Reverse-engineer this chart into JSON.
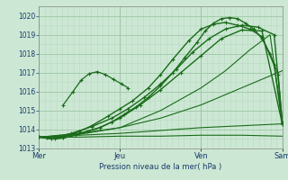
{
  "xlabel": "Pression niveau de la mer( hPa )",
  "ylim": [
    1013.0,
    1020.5
  ],
  "yticks": [
    1013,
    1014,
    1015,
    1016,
    1017,
    1018,
    1019,
    1020
  ],
  "xlim": [
    0.0,
    3.0
  ],
  "background_color": "#cce8d4",
  "grid_color_minor": "#b8d8c0",
  "grid_color_major": "#a0c8a8",
  "line_color": "#1a6b1a",
  "xtick_labels": [
    "Mer",
    "Jeu",
    "Ven",
    "Sam"
  ],
  "xtick_positions": [
    0,
    1,
    2,
    3
  ],
  "lines": [
    {
      "x": [
        0.0,
        0.1,
        0.2,
        0.3,
        0.45,
        0.6,
        0.75,
        0.9,
        1.05,
        1.2,
        1.35,
        1.5,
        1.65,
        1.8,
        1.95,
        2.05,
        2.15,
        2.25,
        2.35,
        2.45,
        2.55,
        2.65,
        2.75,
        2.85,
        2.95,
        3.0
      ],
      "y": [
        1013.6,
        1013.55,
        1013.5,
        1013.55,
        1013.7,
        1013.9,
        1014.1,
        1014.4,
        1014.8,
        1015.2,
        1015.7,
        1016.3,
        1017.0,
        1017.8,
        1018.6,
        1019.2,
        1019.6,
        1019.85,
        1019.9,
        1019.85,
        1019.6,
        1019.3,
        1018.8,
        1018.0,
        1016.9,
        1014.35
      ],
      "marker": true,
      "lw": 1.0
    },
    {
      "x": [
        0.0,
        0.15,
        0.3,
        0.5,
        0.65,
        0.85,
        1.0,
        1.15,
        1.35,
        1.5,
        1.65,
        1.85,
        2.0,
        2.15,
        2.3,
        2.45,
        2.6,
        2.75,
        2.9,
        3.0
      ],
      "y": [
        1013.6,
        1013.5,
        1013.6,
        1013.9,
        1014.2,
        1014.7,
        1015.1,
        1015.5,
        1016.2,
        1016.9,
        1017.7,
        1018.7,
        1019.3,
        1019.55,
        1019.65,
        1019.5,
        1019.3,
        1018.9,
        1017.4,
        1014.3
      ],
      "marker": true,
      "lw": 1.0
    },
    {
      "x": [
        0.0,
        0.2,
        0.4,
        0.65,
        0.9,
        1.1,
        1.3,
        1.5,
        1.7,
        1.9,
        2.1,
        2.3,
        2.5,
        2.7,
        2.9,
        3.0
      ],
      "y": [
        1013.6,
        1013.6,
        1013.8,
        1014.15,
        1014.6,
        1015.1,
        1015.7,
        1016.4,
        1017.2,
        1018.1,
        1018.8,
        1019.3,
        1019.5,
        1019.4,
        1019.0,
        1014.4
      ],
      "marker": true,
      "lw": 1.0
    },
    {
      "x": [
        0.0,
        0.25,
        0.5,
        0.75,
        1.0,
        1.25,
        1.5,
        1.75,
        2.0,
        2.25,
        2.5,
        2.75,
        3.0
      ],
      "y": [
        1013.6,
        1013.65,
        1013.8,
        1014.1,
        1014.6,
        1015.3,
        1016.1,
        1017.0,
        1017.9,
        1018.8,
        1019.25,
        1019.2,
        1014.3
      ],
      "marker": true,
      "lw": 1.0
    },
    {
      "x": [
        0.0,
        0.5,
        1.0,
        1.5,
        2.0,
        2.3,
        2.6,
        2.85,
        3.0
      ],
      "y": [
        1013.6,
        1013.75,
        1014.1,
        1015.0,
        1016.2,
        1017.1,
        1018.2,
        1019.0,
        1014.45
      ],
      "marker": false,
      "lw": 0.8
    },
    {
      "x": [
        0.0,
        0.5,
        1.0,
        1.5,
        2.0,
        2.5,
        3.0
      ],
      "y": [
        1013.6,
        1013.8,
        1014.1,
        1014.6,
        1015.3,
        1016.2,
        1017.1
      ],
      "marker": false,
      "lw": 0.8
    },
    {
      "x": [
        0.0,
        0.5,
        1.0,
        1.5,
        2.0,
        2.5,
        3.0
      ],
      "y": [
        1013.6,
        1013.7,
        1013.8,
        1013.95,
        1014.1,
        1014.2,
        1014.3
      ],
      "marker": false,
      "lw": 0.8
    },
    {
      "x": [
        0.0,
        0.5,
        1.0,
        1.5,
        2.0,
        2.5,
        3.0
      ],
      "y": [
        1013.6,
        1013.6,
        1013.65,
        1013.65,
        1013.7,
        1013.7,
        1013.65
      ],
      "marker": false,
      "lw": 0.8
    },
    {
      "x": [
        0.3,
        0.42,
        0.52,
        0.62,
        0.72,
        0.82,
        0.92,
        1.02,
        1.1
      ],
      "y": [
        1015.3,
        1016.0,
        1016.6,
        1016.95,
        1017.05,
        1016.9,
        1016.65,
        1016.4,
        1016.2
      ],
      "marker": true,
      "lw": 0.9
    }
  ]
}
